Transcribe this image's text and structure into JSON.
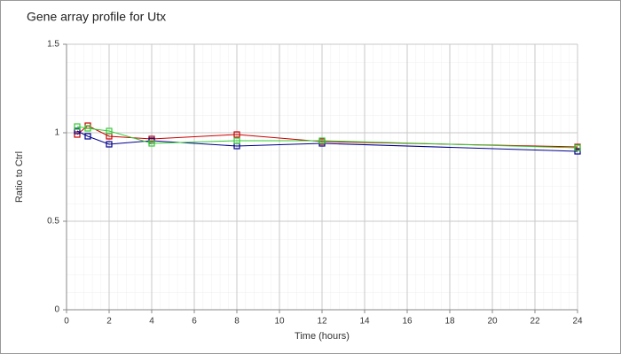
{
  "chart_data": {
    "type": "line",
    "title": "Gene array profile for Utx",
    "xlabel": "Time (hours)",
    "ylabel": "Ratio to Ctrl",
    "x": [
      0.5,
      1,
      2,
      4,
      8,
      12,
      24
    ],
    "series": [
      {
        "color": "#cc0000",
        "values": [
          0.99,
          1.04,
          0.98,
          0.965,
          0.99,
          0.95,
          0.92
        ]
      },
      {
        "color": "#00008b",
        "values": [
          1.01,
          0.98,
          0.935,
          0.955,
          0.925,
          0.94,
          0.895
        ]
      },
      {
        "color": "#33cc33",
        "values": [
          1.035,
          1.025,
          1.01,
          0.94,
          0.955,
          0.955,
          0.915
        ]
      }
    ],
    "xlim": [
      0,
      24
    ],
    "ylim": [
      0,
      1.5
    ],
    "xticks": [
      0,
      2,
      4,
      6,
      8,
      10,
      12,
      14,
      16,
      18,
      20,
      22,
      24
    ],
    "yticks": [
      0,
      0.5,
      1,
      1.5
    ],
    "grid": true
  }
}
